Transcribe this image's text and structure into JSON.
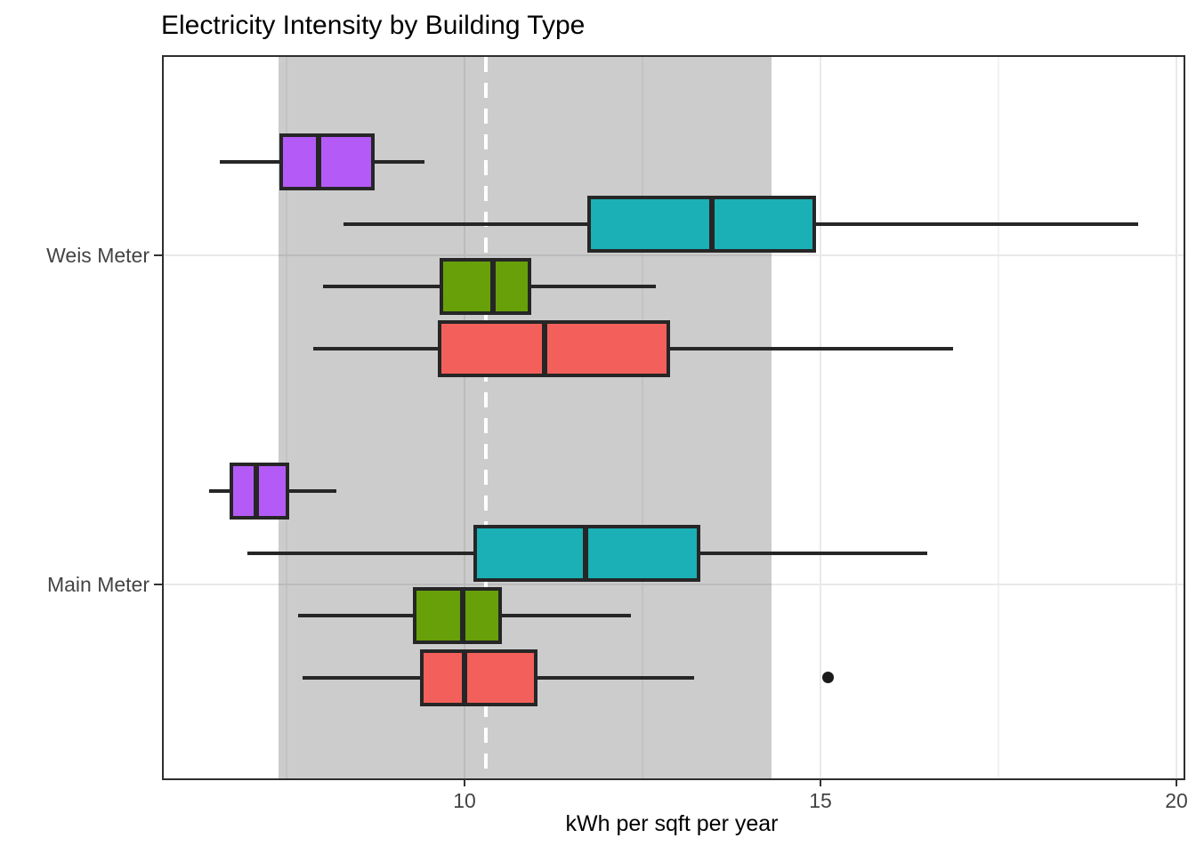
{
  "chart_data": {
    "type": "boxplot",
    "orientation": "horizontal",
    "title": "Electricity Intensity by Building Type",
    "xlabel": "kWh per sqft per year",
    "ylabel": "",
    "x_ticks": [
      10,
      15,
      20
    ],
    "x_minor_ticks": [
      7.5,
      12.5,
      17.5
    ],
    "x_range": [
      5.775,
      20.1
    ],
    "categories": [
      "Weis Meter",
      "Main Meter"
    ],
    "legend": "none",
    "grid": "on",
    "highlight_band": {
      "from": 7.39,
      "to": 14.31,
      "color": "rgba(25,25,25,0.225)"
    },
    "reference_line": {
      "x": 10.3,
      "style": "dashed",
      "color": "#ffffff"
    },
    "box_colors": [
      "#b45bf7",
      "#1bb0b5",
      "#68a00a",
      "#f3605b"
    ],
    "box_color_names": [
      "purple",
      "teal",
      "green",
      "red"
    ],
    "groups": [
      {
        "category": "Weis Meter",
        "boxes": [
          {
            "color": "purple",
            "min": 6.56,
            "q1": 7.4,
            "median": 7.95,
            "q3": 8.74,
            "max": 9.44,
            "outliers": []
          },
          {
            "color": "teal",
            "min": 8.3,
            "q1": 11.73,
            "median": 13.48,
            "q3": 14.94,
            "max": 19.46,
            "outliers": []
          },
          {
            "color": "green",
            "min": 8.01,
            "q1": 9.65,
            "median": 10.4,
            "q3": 10.94,
            "max": 12.69,
            "outliers": []
          },
          {
            "color": "red",
            "min": 7.88,
            "q1": 9.63,
            "median": 11.13,
            "q3": 12.89,
            "max": 16.86,
            "outliers": []
          }
        ]
      },
      {
        "category": "Main Meter",
        "boxes": [
          {
            "color": "purple",
            "min": 6.41,
            "q1": 6.7,
            "median": 7.08,
            "q3": 7.54,
            "max": 8.2,
            "outliers": []
          },
          {
            "color": "teal",
            "min": 6.95,
            "q1": 10.13,
            "median": 11.7,
            "q3": 13.31,
            "max": 16.5,
            "outliers": []
          },
          {
            "color": "green",
            "min": 7.66,
            "q1": 9.28,
            "median": 9.98,
            "q3": 10.53,
            "max": 12.34,
            "outliers": []
          },
          {
            "color": "red",
            "min": 7.73,
            "q1": 9.38,
            "median": 10.0,
            "q3": 11.03,
            "max": 13.23,
            "outliers": [
              15.1
            ]
          }
        ]
      }
    ]
  }
}
